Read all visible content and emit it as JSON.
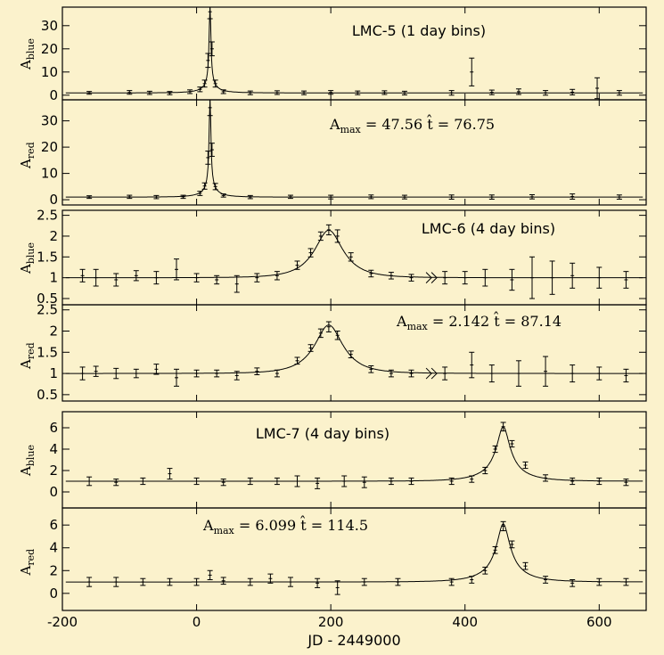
{
  "figure": {
    "xlabel": "JD - 2449000",
    "xticks": [
      -200,
      0,
      200,
      400,
      600
    ],
    "xlim": [
      -200,
      670
    ],
    "background": "#fbf2cc"
  },
  "chart_data": [
    {
      "type": "scatter",
      "title": "LMC-5 (1 day bins)",
      "ylabel": {
        "main": "A",
        "sub": "blue"
      },
      "ylim": [
        -2,
        38
      ],
      "yticks": [
        0,
        10,
        20,
        30
      ],
      "model": {
        "t0": 20,
        "tE": 76.75,
        "Amax": 47.56,
        "baseline": 1
      },
      "points": [
        [
          -160,
          1.0,
          0.6
        ],
        [
          -100,
          1.2,
          0.8
        ],
        [
          -70,
          1.0,
          0.7
        ],
        [
          -40,
          0.9,
          0.7
        ],
        [
          -10,
          1.5,
          0.8
        ],
        [
          5,
          2.5,
          1.0
        ],
        [
          12,
          5.0,
          1.5
        ],
        [
          17,
          15,
          3
        ],
        [
          20,
          36,
          3
        ],
        [
          23,
          20,
          3
        ],
        [
          28,
          5,
          1.5
        ],
        [
          40,
          1.5,
          0.8
        ],
        [
          80,
          1.0,
          0.8
        ],
        [
          120,
          1.1,
          0.8
        ],
        [
          160,
          1.0,
          0.8
        ],
        [
          200,
          1.2,
          0.8
        ],
        [
          240,
          1.0,
          0.8
        ],
        [
          280,
          1.1,
          0.8
        ],
        [
          310,
          0.9,
          0.8
        ],
        [
          380,
          1.0,
          1.0
        ],
        [
          410,
          10,
          6
        ],
        [
          440,
          1.2,
          1.0
        ],
        [
          480,
          1.5,
          1.2
        ],
        [
          520,
          1.0,
          1.0
        ],
        [
          560,
          1.3,
          1.2
        ],
        [
          597,
          3,
          4.5
        ],
        [
          630,
          1.0,
          1.0
        ]
      ],
      "annotation": ""
    },
    {
      "type": "scatter",
      "title": "",
      "ylabel": {
        "main": "A",
        "sub": "red"
      },
      "ylim": [
        -2,
        38
      ],
      "yticks": [
        0,
        10,
        20,
        30
      ],
      "model": {
        "t0": 20,
        "tE": 76.75,
        "Amax": 47.56,
        "baseline": 1
      },
      "points": [
        [
          -160,
          1.0,
          0.5
        ],
        [
          -100,
          1.1,
          0.6
        ],
        [
          -60,
          1.0,
          0.6
        ],
        [
          -20,
          1.1,
          0.6
        ],
        [
          5,
          2.4,
          0.8
        ],
        [
          12,
          5.2,
          1.2
        ],
        [
          17,
          16,
          2.5
        ],
        [
          20,
          35,
          3
        ],
        [
          23,
          19,
          2.5
        ],
        [
          28,
          5,
          1.2
        ],
        [
          40,
          1.6,
          0.6
        ],
        [
          80,
          1.0,
          0.6
        ],
        [
          140,
          1.1,
          0.6
        ],
        [
          200,
          1.0,
          0.7
        ],
        [
          260,
          1.1,
          0.7
        ],
        [
          310,
          1.0,
          0.7
        ],
        [
          380,
          1.0,
          0.8
        ],
        [
          440,
          1.0,
          0.8
        ],
        [
          500,
          1.1,
          0.8
        ],
        [
          560,
          1.2,
          1.0
        ],
        [
          630,
          1.0,
          0.8
        ]
      ],
      "annotation": "47.56|76.75"
    },
    {
      "type": "scatter",
      "title": "LMC-6 (4 day bins)",
      "ylabel": {
        "main": "A",
        "sub": "blue"
      },
      "ylim": [
        0.35,
        2.62
      ],
      "yticks": [
        0.5,
        1,
        1.5,
        2,
        2.5
      ],
      "model": {
        "t0": 197,
        "tE": 87.14,
        "Amax": 2.142,
        "baseline": 1
      },
      "points": [
        [
          -170,
          1.05,
          0.15
        ],
        [
          -150,
          1.0,
          0.2
        ],
        [
          -120,
          0.95,
          0.15
        ],
        [
          -90,
          1.05,
          0.12
        ],
        [
          -60,
          1.0,
          0.15
        ],
        [
          -30,
          1.2,
          0.25
        ],
        [
          0,
          1.0,
          0.1
        ],
        [
          30,
          0.95,
          0.1
        ],
        [
          60,
          0.85,
          0.2
        ],
        [
          90,
          1.0,
          0.1
        ],
        [
          120,
          1.05,
          0.1
        ],
        [
          150,
          1.3,
          0.1
        ],
        [
          170,
          1.6,
          0.1
        ],
        [
          185,
          2.0,
          0.1
        ],
        [
          197,
          2.15,
          0.12
        ],
        [
          210,
          2.0,
          0.15
        ],
        [
          230,
          1.5,
          0.1
        ],
        [
          260,
          1.1,
          0.08
        ],
        [
          290,
          1.05,
          0.08
        ],
        [
          320,
          1.0,
          0.08
        ],
        [
          370,
          1.0,
          0.15
        ],
        [
          400,
          1.0,
          0.15
        ],
        [
          430,
          1.0,
          0.2
        ],
        [
          470,
          0.95,
          0.25
        ],
        [
          500,
          1.0,
          0.5
        ],
        [
          530,
          1.0,
          0.4
        ],
        [
          560,
          1.05,
          0.3
        ],
        [
          600,
          1.0,
          0.25
        ],
        [
          640,
          0.95,
          0.2
        ]
      ],
      "annotation": ""
    },
    {
      "type": "scatter",
      "title": "",
      "ylabel": {
        "main": "A",
        "sub": "red"
      },
      "ylim": [
        0.35,
        2.62
      ],
      "yticks": [
        0.5,
        1,
        1.5,
        2,
        2.5
      ],
      "model": {
        "t0": 197,
        "tE": 87.14,
        "Amax": 2.142,
        "baseline": 1
      },
      "points": [
        [
          -170,
          1.0,
          0.15
        ],
        [
          -150,
          1.05,
          0.12
        ],
        [
          -120,
          1.0,
          0.12
        ],
        [
          -90,
          1.0,
          0.1
        ],
        [
          -60,
          1.1,
          0.12
        ],
        [
          -30,
          0.9,
          0.2
        ],
        [
          0,
          1.0,
          0.08
        ],
        [
          30,
          1.0,
          0.08
        ],
        [
          60,
          0.95,
          0.1
        ],
        [
          90,
          1.05,
          0.08
        ],
        [
          120,
          1.0,
          0.08
        ],
        [
          150,
          1.3,
          0.08
        ],
        [
          170,
          1.6,
          0.08
        ],
        [
          185,
          1.95,
          0.1
        ],
        [
          197,
          2.1,
          0.12
        ],
        [
          210,
          1.9,
          0.1
        ],
        [
          230,
          1.45,
          0.08
        ],
        [
          260,
          1.1,
          0.08
        ],
        [
          290,
          1.0,
          0.08
        ],
        [
          320,
          1.0,
          0.08
        ],
        [
          370,
          1.0,
          0.15
        ],
        [
          410,
          1.2,
          0.3
        ],
        [
          440,
          1.0,
          0.2
        ],
        [
          480,
          1.0,
          0.3
        ],
        [
          520,
          1.05,
          0.35
        ],
        [
          560,
          1.0,
          0.2
        ],
        [
          600,
          1.0,
          0.15
        ],
        [
          640,
          0.95,
          0.15
        ]
      ],
      "annotation": "2.142|87.14"
    },
    {
      "type": "scatter",
      "title": "LMC-7 (4 day bins)",
      "ylabel": {
        "main": "A",
        "sub": "blue"
      },
      "ylim": [
        -1.5,
        7.5
      ],
      "yticks": [
        0,
        2,
        4,
        6
      ],
      "model": {
        "t0": 457,
        "tE": 114.5,
        "Amax": 6.099,
        "baseline": 1
      },
      "points": [
        [
          -160,
          1.0,
          0.4
        ],
        [
          -120,
          0.9,
          0.3
        ],
        [
          -80,
          1.0,
          0.3
        ],
        [
          -40,
          1.7,
          0.5
        ],
        [
          0,
          1.0,
          0.3
        ],
        [
          40,
          0.9,
          0.3
        ],
        [
          80,
          1.0,
          0.3
        ],
        [
          120,
          1.0,
          0.3
        ],
        [
          150,
          1.0,
          0.5
        ],
        [
          180,
          0.8,
          0.5
        ],
        [
          220,
          1.0,
          0.5
        ],
        [
          250,
          0.9,
          0.5
        ],
        [
          290,
          1.0,
          0.3
        ],
        [
          320,
          1.0,
          0.3
        ],
        [
          380,
          1.0,
          0.3
        ],
        [
          410,
          1.2,
          0.3
        ],
        [
          430,
          2.0,
          0.3
        ],
        [
          445,
          4.0,
          0.3
        ],
        [
          457,
          6.1,
          0.4
        ],
        [
          470,
          4.5,
          0.3
        ],
        [
          490,
          2.5,
          0.3
        ],
        [
          520,
          1.3,
          0.3
        ],
        [
          560,
          1.0,
          0.3
        ],
        [
          600,
          1.0,
          0.3
        ],
        [
          640,
          0.9,
          0.3
        ]
      ],
      "annotation": ""
    },
    {
      "type": "scatter",
      "title": "",
      "ylabel": {
        "main": "A",
        "sub": "red"
      },
      "ylim": [
        -1.5,
        7.5
      ],
      "yticks": [
        0,
        2,
        4,
        6
      ],
      "model": {
        "t0": 457,
        "tE": 114.5,
        "Amax": 6.099,
        "baseline": 1
      },
      "points": [
        [
          -160,
          1.0,
          0.4
        ],
        [
          -120,
          1.0,
          0.4
        ],
        [
          -80,
          1.0,
          0.3
        ],
        [
          -40,
          1.0,
          0.3
        ],
        [
          0,
          1.0,
          0.3
        ],
        [
          20,
          1.6,
          0.4
        ],
        [
          40,
          1.1,
          0.3
        ],
        [
          80,
          1.0,
          0.3
        ],
        [
          110,
          1.3,
          0.4
        ],
        [
          140,
          1.0,
          0.4
        ],
        [
          180,
          0.9,
          0.4
        ],
        [
          210,
          0.5,
          0.6
        ],
        [
          250,
          1.0,
          0.3
        ],
        [
          300,
          1.0,
          0.3
        ],
        [
          380,
          1.0,
          0.3
        ],
        [
          410,
          1.2,
          0.3
        ],
        [
          430,
          2.0,
          0.3
        ],
        [
          445,
          3.8,
          0.3
        ],
        [
          457,
          5.9,
          0.4
        ],
        [
          470,
          4.3,
          0.3
        ],
        [
          490,
          2.4,
          0.3
        ],
        [
          520,
          1.2,
          0.3
        ],
        [
          560,
          0.9,
          0.3
        ],
        [
          600,
          1.0,
          0.3
        ],
        [
          640,
          1.0,
          0.3
        ]
      ],
      "annotation": "6.099|114.5"
    }
  ],
  "annotations": {
    "a_main": "A",
    "a_sub": "max",
    "eq": "=",
    "that": "t̂"
  }
}
